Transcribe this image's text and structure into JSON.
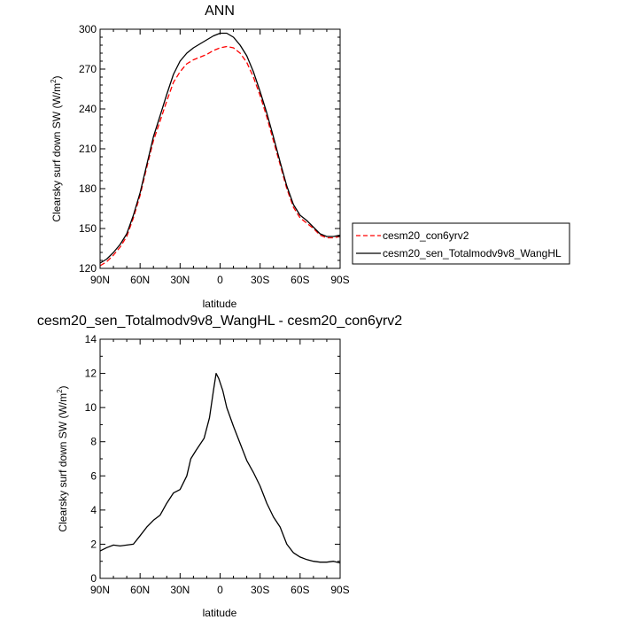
{
  "chart_data": [
    {
      "type": "line",
      "title": "ANN",
      "xlabel": "latitude",
      "ylabel": "Clearsky surf down SW (W/m2)",
      "xlim": [
        90,
        -90
      ],
      "ylim": [
        120,
        300
      ],
      "yticks": [
        120,
        150,
        180,
        210,
        240,
        270,
        300
      ],
      "xticks": [
        90,
        60,
        30,
        0,
        -30,
        -60,
        -90
      ],
      "xticklabels": [
        "90N",
        "60N",
        "30N",
        "0",
        "30S",
        "60S",
        "90S"
      ],
      "legend_position": "right",
      "series": [
        {
          "name": "cesm20_con6yrv2",
          "color": "#ff0000",
          "dash": "dashed",
          "points": [
            [
              90,
              122
            ],
            [
              85,
              125
            ],
            [
              80,
              130
            ],
            [
              75,
              136
            ],
            [
              70,
              144
            ],
            [
              65,
              158
            ],
            [
              60,
              175
            ],
            [
              55,
              196
            ],
            [
              50,
              216
            ],
            [
              45,
              231
            ],
            [
              40,
              246
            ],
            [
              35,
              260
            ],
            [
              30,
              268
            ],
            [
              25,
              274
            ],
            [
              20,
              277
            ],
            [
              15,
              279
            ],
            [
              10,
              281
            ],
            [
              5,
              284
            ],
            [
              0,
              286
            ],
            [
              -5,
              287
            ],
            [
              -10,
              286
            ],
            [
              -15,
              282
            ],
            [
              -20,
              275
            ],
            [
              -25,
              264
            ],
            [
              -30,
              250
            ],
            [
              -35,
              234
            ],
            [
              -40,
              216
            ],
            [
              -45,
              198
            ],
            [
              -50,
              180
            ],
            [
              -55,
              166
            ],
            [
              -60,
              158
            ],
            [
              -65,
              154
            ],
            [
              -70,
              150
            ],
            [
              -75,
              145
            ],
            [
              -80,
              143
            ],
            [
              -85,
              143
            ],
            [
              -90,
              144
            ]
          ]
        },
        {
          "name": "cesm20_sen_Totalmodv9v8_WangHL",
          "color": "#000000",
          "dash": "solid",
          "points": [
            [
              90,
              124
            ],
            [
              85,
              127
            ],
            [
              80,
              132
            ],
            [
              75,
              138
            ],
            [
              70,
              146
            ],
            [
              65,
              160
            ],
            [
              60,
              177
            ],
            [
              55,
              198
            ],
            [
              50,
              219
            ],
            [
              45,
              235
            ],
            [
              40,
              251
            ],
            [
              35,
              266
            ],
            [
              30,
              276
            ],
            [
              25,
              282
            ],
            [
              20,
              286
            ],
            [
              15,
              289
            ],
            [
              10,
              292
            ],
            [
              5,
              295
            ],
            [
              0,
              297
            ],
            [
              -5,
              297
            ],
            [
              -10,
              294
            ],
            [
              -15,
              288
            ],
            [
              -20,
              280
            ],
            [
              -25,
              268
            ],
            [
              -30,
              253
            ],
            [
              -35,
              237
            ],
            [
              -40,
              219
            ],
            [
              -45,
              200
            ],
            [
              -50,
              182
            ],
            [
              -55,
              168
            ],
            [
              -60,
              160
            ],
            [
              -65,
              156
            ],
            [
              -70,
              151
            ],
            [
              -75,
              146
            ],
            [
              -80,
              144
            ],
            [
              -85,
              144
            ],
            [
              -90,
              145
            ]
          ]
        }
      ]
    },
    {
      "type": "line",
      "title": "cesm20_sen_Totalmodv9v8_WangHL - cesm20_con6yrv2",
      "xlabel": "latitude",
      "ylabel": "Clearsky surf down SW (W/m2)",
      "xlim": [
        90,
        -90
      ],
      "ylim": [
        0,
        14
      ],
      "yticks": [
        0,
        2,
        4,
        6,
        8,
        10,
        12,
        14
      ],
      "xticks": [
        90,
        60,
        30,
        0,
        -30,
        -60,
        -90
      ],
      "xticklabels": [
        "90N",
        "60N",
        "30N",
        "0",
        "30S",
        "60S",
        "90S"
      ],
      "series": [
        {
          "color": "#000000",
          "dash": "solid",
          "points": [
            [
              90,
              1.6
            ],
            [
              85,
              1.8
            ],
            [
              80,
              1.95
            ],
            [
              75,
              1.9
            ],
            [
              70,
              1.95
            ],
            [
              65,
              2.0
            ],
            [
              60,
              2.5
            ],
            [
              55,
              3.0
            ],
            [
              50,
              3.4
            ],
            [
              45,
              3.7
            ],
            [
              40,
              4.4
            ],
            [
              35,
              5.0
            ],
            [
              30,
              5.2
            ],
            [
              25,
              6.0
            ],
            [
              22,
              7.0
            ],
            [
              18,
              7.5
            ],
            [
              12,
              8.2
            ],
            [
              8,
              9.4
            ],
            [
              5,
              11.0
            ],
            [
              3,
              12.0
            ],
            [
              1,
              11.7
            ],
            [
              -2,
              11.0
            ],
            [
              -5,
              10.0
            ],
            [
              -10,
              8.9
            ],
            [
              -15,
              7.9
            ],
            [
              -20,
              6.9
            ],
            [
              -25,
              6.2
            ],
            [
              -30,
              5.4
            ],
            [
              -35,
              4.4
            ],
            [
              -40,
              3.6
            ],
            [
              -45,
              3.0
            ],
            [
              -50,
              2.0
            ],
            [
              -55,
              1.5
            ],
            [
              -60,
              1.25
            ],
            [
              -65,
              1.1
            ],
            [
              -70,
              1.0
            ],
            [
              -75,
              0.95
            ],
            [
              -80,
              0.95
            ],
            [
              -85,
              1.0
            ],
            [
              -90,
              0.9
            ]
          ]
        }
      ]
    }
  ]
}
